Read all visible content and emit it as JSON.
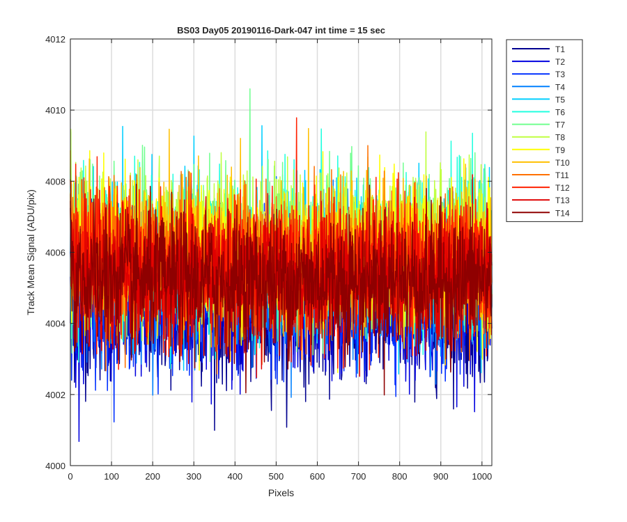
{
  "chart_data": {
    "type": "line",
    "title": "BS03 Day05 20190116-Dark-047 int time = 15 sec",
    "xlabel": "Pixels",
    "ylabel": "Track Mean Signal (ADU/pix)",
    "xlim": [
      0,
      1024
    ],
    "ylim": [
      4000,
      4012
    ],
    "xticks": [
      0,
      100,
      200,
      300,
      400,
      500,
      600,
      700,
      800,
      900,
      1000
    ],
    "yticks": [
      4000,
      4002,
      4004,
      4006,
      4008,
      4010,
      4012
    ],
    "grid": true,
    "legend_position": "outside-top-right",
    "n_points": 1024,
    "series": [
      {
        "name": "T1",
        "color": "#00008f",
        "center": 4004.3,
        "spread": 0.95
      },
      {
        "name": "T2",
        "color": "#0000df",
        "center": 4004.5,
        "spread": 0.95
      },
      {
        "name": "T3",
        "color": "#0030ff",
        "center": 4004.8,
        "spread": 0.95
      },
      {
        "name": "T4",
        "color": "#0080ff",
        "center": 4005.3,
        "spread": 1.0
      },
      {
        "name": "T5",
        "color": "#00cfff",
        "center": 4005.8,
        "spread": 1.05
      },
      {
        "name": "T6",
        "color": "#20ffdf",
        "center": 4006.0,
        "spread": 1.05
      },
      {
        "name": "T7",
        "color": "#70ff8f",
        "center": 4006.1,
        "spread": 1.05
      },
      {
        "name": "T8",
        "color": "#bfff40",
        "center": 4006.2,
        "spread": 1.05
      },
      {
        "name": "T9",
        "color": "#ffff00",
        "center": 4006.0,
        "spread": 1.0
      },
      {
        "name": "T10",
        "color": "#ffbf00",
        "center": 4005.9,
        "spread": 1.0
      },
      {
        "name": "T11",
        "color": "#ff7000",
        "center": 4005.7,
        "spread": 1.0
      },
      {
        "name": "T12",
        "color": "#ff2000",
        "center": 4005.5,
        "spread": 1.0
      },
      {
        "name": "T13",
        "color": "#df0000",
        "center": 4005.3,
        "spread": 0.95
      },
      {
        "name": "T14",
        "color": "#8f0000",
        "center": 4005.2,
        "spread": 0.95
      }
    ]
  }
}
